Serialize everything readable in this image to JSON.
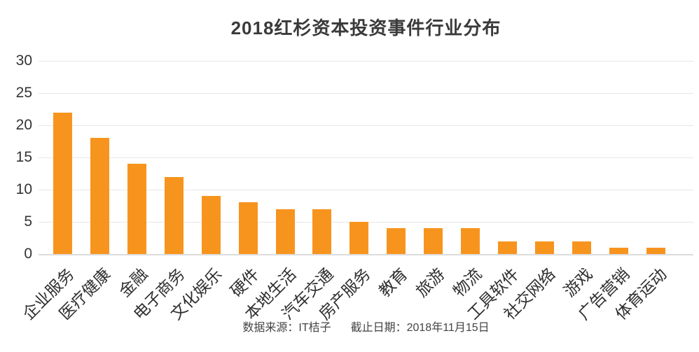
{
  "chart_data": {
    "type": "bar",
    "title": "2018红杉资本投资事件行业分布",
    "categories": [
      "企业服务",
      "医疗健康",
      "金融",
      "电子商务",
      "文化娱乐",
      "硬件",
      "本地生活",
      "汽车交通",
      "房产服务",
      "教育",
      "旅游",
      "物流",
      "工具软件",
      "社交网络",
      "游戏",
      "广告营销",
      "体育运动"
    ],
    "values": [
      22,
      18,
      14,
      12,
      9,
      8,
      7,
      7,
      5,
      4,
      4,
      4,
      2,
      2,
      2,
      1,
      1
    ],
    "xlabel": "",
    "ylabel": "",
    "ylim": [
      0,
      30
    ],
    "yticks": [
      0,
      5,
      10,
      15,
      20,
      25,
      30
    ],
    "grid": true,
    "legend": "none",
    "bar_color": "#F7941E"
  },
  "footer": {
    "source_label": "数据来源：IT桔子",
    "date_label": "截止日期：2018年11月15日"
  },
  "colors": {
    "bar": "#F7941E",
    "gridline": "#E8E8E8",
    "axis_line": "#DCDCDC",
    "title_text": "#3A3A3A",
    "axis_text": "#333333",
    "footer_text": "#444444"
  }
}
